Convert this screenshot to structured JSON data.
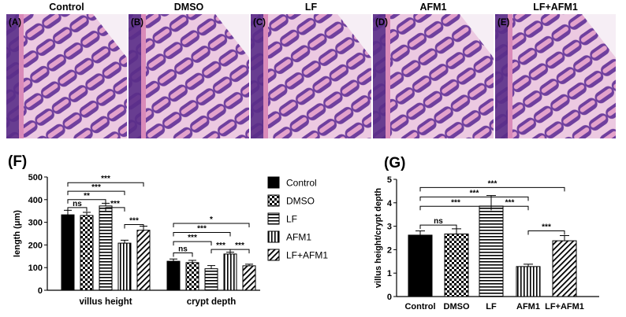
{
  "histology": {
    "panels": [
      {
        "letter": "(A)",
        "label": "Control"
      },
      {
        "letter": "(B)",
        "label": "DMSO"
      },
      {
        "letter": "(C)",
        "label": "LF"
      },
      {
        "letter": "(D)",
        "label": "AFM1"
      },
      {
        "letter": "(E)",
        "label": "LF+AFM1"
      }
    ],
    "colors": {
      "tissue": "#7b4aa6",
      "eosin": "#e08ab8",
      "background": "#f7eef6"
    }
  },
  "chart_data": [
    {
      "panel_label": "(F)",
      "type": "bar",
      "categories": [
        "villus height",
        "crypt depth"
      ],
      "ylabel": "length (μm)",
      "ylim": [
        0,
        500
      ],
      "yticks": [
        0,
        100,
        200,
        300,
        400,
        500
      ],
      "legend_position": "right",
      "series": [
        {
          "name": "Control",
          "pattern": "solid",
          "values": [
            333,
            128
          ],
          "errors": [
            20,
            10
          ]
        },
        {
          "name": "DMSO",
          "pattern": "checker",
          "values": [
            330,
            122
          ],
          "errors": [
            14,
            10
          ]
        },
        {
          "name": "LF",
          "pattern": "horizontal",
          "values": [
            372,
            95
          ],
          "errors": [
            12,
            14
          ]
        },
        {
          "name": "AFM1",
          "pattern": "vertical",
          "values": [
            208,
            160
          ],
          "errors": [
            13,
            8
          ]
        },
        {
          "name": "LF+AFM1",
          "pattern": "diagonal",
          "values": [
            265,
            108
          ],
          "errors": [
            18,
            7
          ]
        }
      ],
      "significance": [
        {
          "group": 0,
          "from": 0,
          "to": 4,
          "label": "***",
          "y": 475
        },
        {
          "group": 0,
          "from": 0,
          "to": 3,
          "label": "***",
          "y": 437
        },
        {
          "group": 0,
          "from": 0,
          "to": 2,
          "label": "**",
          "y": 400
        },
        {
          "group": 0,
          "from": 0,
          "to": 1,
          "label": "ns",
          "y": 365
        },
        {
          "group": 0,
          "from": 2,
          "to": 3,
          "label": "***",
          "y": 365
        },
        {
          "group": 0,
          "from": 3,
          "to": 4,
          "label": "***",
          "y": 290
        },
        {
          "group": 1,
          "from": 0,
          "to": 4,
          "label": "*",
          "y": 295
        },
        {
          "group": 1,
          "from": 0,
          "to": 3,
          "label": "***",
          "y": 255
        },
        {
          "group": 1,
          "from": 0,
          "to": 2,
          "label": "***",
          "y": 215
        },
        {
          "group": 1,
          "from": 0,
          "to": 1,
          "label": "ns",
          "y": 165
        },
        {
          "group": 1,
          "from": 2,
          "to": 3,
          "label": "***",
          "y": 180
        },
        {
          "group": 1,
          "from": 3,
          "to": 4,
          "label": "***",
          "y": 180
        }
      ]
    },
    {
      "panel_label": "(G)",
      "type": "bar",
      "categories": [
        "Control",
        "DMSO",
        "LF",
        "AFM1",
        "LF+AFM1"
      ],
      "ylabel": "villus height/crypt depth",
      "ylim": [
        0,
        5
      ],
      "yticks": [
        0,
        1,
        2,
        3,
        4,
        5
      ],
      "patterns": [
        "solid",
        "checker",
        "horizontal",
        "vertical",
        "diagonal"
      ],
      "values": [
        2.62,
        2.67,
        3.86,
        1.28,
        2.38
      ],
      "errors": [
        0.18,
        0.22,
        0.45,
        0.1,
        0.22
      ],
      "significance": [
        {
          "from": 0,
          "to": 4,
          "label": "***",
          "y": 4.65
        },
        {
          "from": 0,
          "to": 3,
          "label": "***",
          "y": 4.25
        },
        {
          "from": 0,
          "to": 2,
          "label": "***",
          "y": 3.85
        },
        {
          "from": 0,
          "to": 1,
          "label": "ns",
          "y": 3.05
        },
        {
          "from": 2,
          "to": 3,
          "label": "***",
          "y": 3.85
        },
        {
          "from": 3,
          "to": 4,
          "label": "***",
          "y": 2.8
        }
      ]
    }
  ]
}
